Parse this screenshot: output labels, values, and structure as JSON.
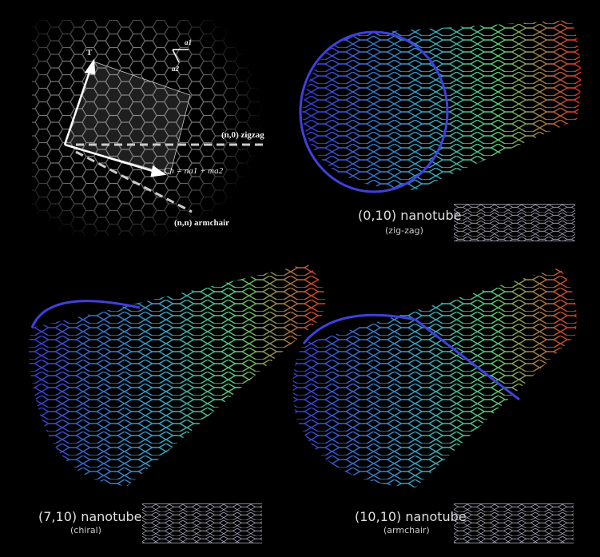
{
  "lattice_diagram": {
    "t_label": "T",
    "a1_label": "a1",
    "a2_label": "a2",
    "zigzag_label": "(n,0) zigzag",
    "armchair_label": "(n,n) armchair",
    "chiral_vector_label": "Ch = na1 + ma2"
  },
  "nanotubes": [
    {
      "title": "(0,10) nanotube",
      "subtitle": "(zig-zag)"
    },
    {
      "title": "(7,10) nanotube",
      "subtitle": "(chiral)"
    },
    {
      "title": "(10,10) nanotube",
      "subtitle": "(armchair)"
    }
  ],
  "colors": {
    "background": "#000000",
    "tube_start": "#3a3ad8",
    "tube_mid": "#5ed07a",
    "tube_end": "#e03a20"
  }
}
